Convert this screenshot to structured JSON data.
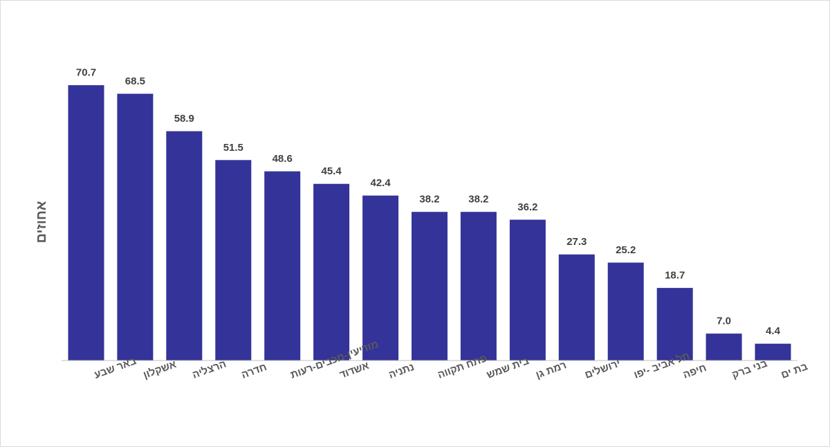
{
  "chart_data": {
    "type": "bar",
    "title": "",
    "ylabel": "אחוזים",
    "xlabel": "",
    "ylim": [
      0,
      80
    ],
    "grid": false,
    "legend": "none",
    "bar_color": "#333399",
    "categories": [
      "באר שבע",
      "אשקלון",
      "הרצליה",
      "חדרה",
      "מודיעין-מכבים-רעות",
      "אשדוד",
      "נתניה",
      "פתח תקווה",
      "בית שמש",
      "רמת גן",
      "ירושלים",
      "תל אביב -יפו",
      "חיפה",
      "בני ברק",
      "בת ים"
    ],
    "values": [
      70.7,
      68.5,
      58.9,
      51.5,
      48.6,
      45.4,
      42.4,
      38.2,
      38.2,
      36.2,
      27.3,
      25.2,
      18.7,
      7.0,
      4.4
    ],
    "value_labels": [
      "70.7",
      "68.5",
      "58.9",
      "51.5",
      "48.6",
      "45.4",
      "42.4",
      "38.2",
      "38.2",
      "36.2",
      "27.3",
      "25.2",
      "18.7",
      "7.0",
      "4.4"
    ]
  }
}
